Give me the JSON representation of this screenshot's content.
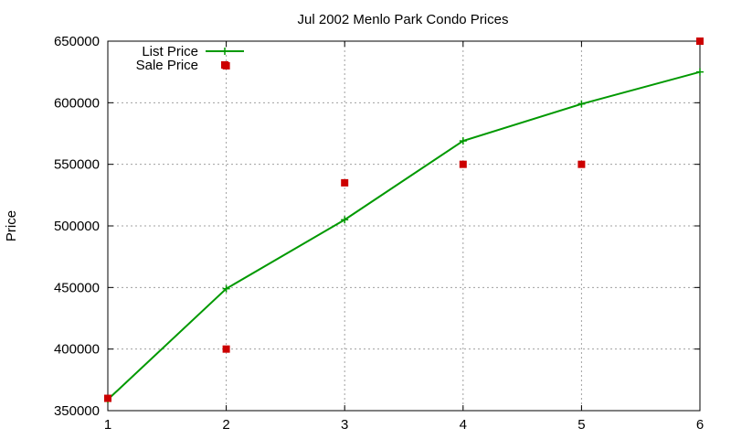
{
  "chart_data": {
    "type": "line",
    "title": "Jul 2002 Menlo Park Condo Prices",
    "xlabel": "",
    "ylabel": "Price",
    "xlim": [
      1,
      6
    ],
    "ylim": [
      350000,
      650000
    ],
    "x_ticks": [
      1,
      2,
      3,
      4,
      5,
      6
    ],
    "y_ticks": [
      350000,
      400000,
      450000,
      500000,
      550000,
      600000,
      650000
    ],
    "grid": true,
    "legend_position": "top-left",
    "series": [
      {
        "name": "List Price",
        "kind": "line-points",
        "color": "#009900",
        "points": [
          {
            "x": 1,
            "y": 359000
          },
          {
            "x": 2,
            "y": 449000
          },
          {
            "x": 3,
            "y": 505000
          },
          {
            "x": 4,
            "y": 569000
          },
          {
            "x": 5,
            "y": 599000
          },
          {
            "x": 6,
            "y": 625000
          }
        ]
      },
      {
        "name": "Sale Price",
        "kind": "points",
        "color": "#cc0000",
        "points": [
          {
            "x": 1,
            "y": 360000
          },
          {
            "x": 2,
            "y": 400000
          },
          {
            "x": 2,
            "y": 630000
          },
          {
            "x": 3,
            "y": 535000
          },
          {
            "x": 4,
            "y": 550000
          },
          {
            "x": 5,
            "y": 550000
          },
          {
            "x": 6,
            "y": 650000
          }
        ]
      }
    ]
  }
}
